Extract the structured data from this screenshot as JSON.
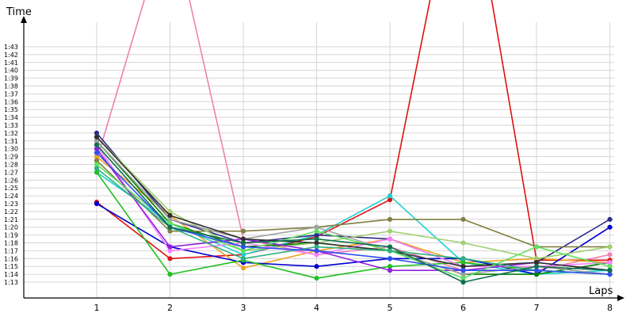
{
  "chart_data": {
    "type": "line",
    "title": "",
    "ylabel": "Time",
    "xlabel": "Laps",
    "x": [
      1,
      2,
      3,
      4,
      5,
      6,
      7,
      8
    ],
    "xticks": [
      "1",
      "2",
      "3",
      "4",
      "5",
      "6",
      "7",
      "8"
    ],
    "ylim": [
      70,
      105
    ],
    "yticks": [
      "1:13",
      "1:14",
      "1:15",
      "1:16",
      "1:17",
      "1:18",
      "1:19",
      "1:20",
      "1:21",
      "1:22",
      "1:23",
      "1:24",
      "1:25",
      "1:26",
      "1:27",
      "1:28",
      "1:29",
      "1:30",
      "1:31",
      "1:32",
      "1:33",
      "1:34",
      "1:35",
      "1:36",
      "1:37",
      "1:38",
      "1:39",
      "1:40",
      "1:41",
      "1:42",
      "1:43"
    ],
    "grid": true,
    "series": [
      {
        "color": "#f080b0",
        "values": [
          88.5,
          120,
          78.5,
          76.5,
          77.5,
          74.5,
          74.5,
          76.5
        ]
      },
      {
        "color": "#e01010",
        "values": [
          83.2,
          76.0,
          76.5,
          78.8,
          83.5,
          130,
          75.8,
          75.8
        ]
      },
      {
        "color": "#f0a020",
        "values": [
          89.0,
          81.5,
          74.8,
          77.0,
          78.5,
          75.5,
          76.0,
          75.5
        ]
      },
      {
        "color": "#20d0d0",
        "values": [
          87.0,
          80.5,
          76.5,
          79.0,
          84.0,
          75.5,
          74.0,
          74.5
        ]
      },
      {
        "color": "#0000d0",
        "values": [
          83.0,
          77.5,
          75.5,
          75.0,
          76.0,
          76.0,
          74.0,
          80.0
        ]
      },
      {
        "color": "#2c2c8a",
        "values": [
          92.0,
          81.0,
          78.0,
          79.0,
          78.5,
          75.0,
          75.5,
          81.0
        ]
      },
      {
        "color": "#20c020",
        "values": [
          87.0,
          74.0,
          75.8,
          73.5,
          75.0,
          75.5,
          74.5,
          74.0
        ]
      },
      {
        "color": "#008000",
        "values": [
          91.0,
          80.5,
          77.5,
          78.0,
          77.0,
          74.0,
          74.0,
          75.5
        ]
      },
      {
        "color": "#808040",
        "values": [
          88.5,
          79.5,
          79.5,
          80.0,
          81.0,
          81.0,
          77.5,
          77.5
        ]
      },
      {
        "color": "#a0d070",
        "values": [
          91.5,
          82.0,
          77.0,
          78.0,
          79.5,
          78.0,
          76.0,
          77.5
        ]
      },
      {
        "color": "#ff80ff",
        "values": [
          90.5,
          77.0,
          78.0,
          76.5,
          78.5,
          75.0,
          75.0,
          75.5
        ]
      },
      {
        "color": "#9020e0",
        "values": [
          90.0,
          77.5,
          78.5,
          77.0,
          74.5,
          74.5,
          75.5,
          74.5
        ]
      },
      {
        "color": "#a0a0a0",
        "values": [
          91.0,
          81.0,
          78.5,
          80.0,
          77.0,
          74.0,
          75.0,
          74.0
        ]
      },
      {
        "color": "#303030",
        "values": [
          91.5,
          81.5,
          78.5,
          78.0,
          77.0,
          75.0,
          75.5,
          74.5
        ]
      },
      {
        "color": "#60e060",
        "values": [
          88.0,
          80.5,
          77.0,
          79.5,
          77.0,
          73.5,
          77.5,
          75.0
        ]
      },
      {
        "color": "#30b080",
        "values": [
          87.5,
          80.0,
          76.0,
          77.5,
          77.0,
          76.0,
          74.5,
          74.0
        ]
      },
      {
        "color": "#3050f0",
        "values": [
          89.5,
          80.0,
          77.5,
          77.0,
          76.0,
          74.5,
          74.5,
          74.0
        ]
      },
      {
        "color": "#107050",
        "values": [
          90.5,
          80.0,
          78.0,
          78.5,
          77.5,
          73.0,
          75.0,
          74.5
        ]
      }
    ]
  }
}
